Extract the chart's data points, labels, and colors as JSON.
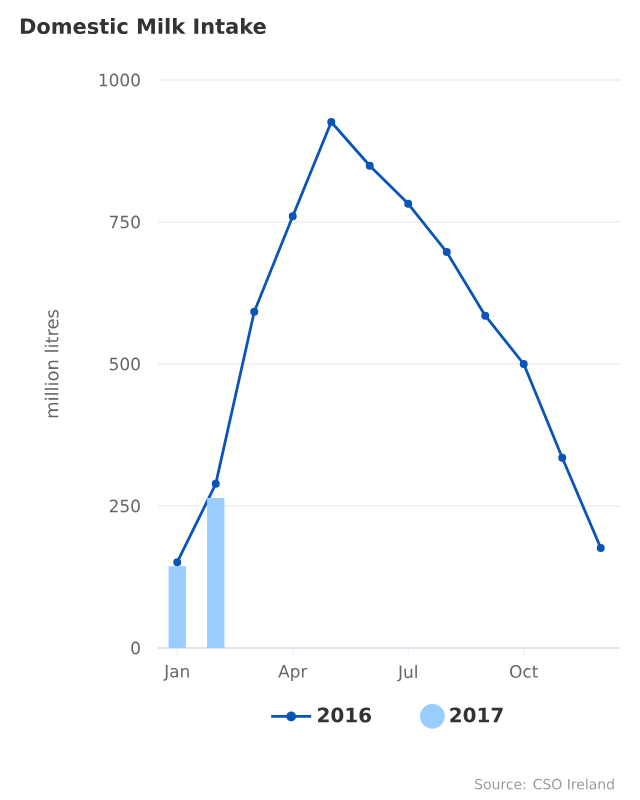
{
  "chart_data": {
    "type": "line",
    "title": "Domestic Milk Intake",
    "ylabel": "million litres",
    "categories": [
      "Jan",
      null,
      null,
      "Apr",
      null,
      null,
      "Jul",
      null,
      null,
      "Oct",
      null,
      null
    ],
    "series": [
      {
        "name": "2016",
        "color": "#0b55b8",
        "values": [
          151,
          289,
          592,
          760,
          926,
          849,
          782,
          697,
          585,
          500,
          335,
          176
        ]
      },
      {
        "name": "2017",
        "type": "bar",
        "color": "#99ccff",
        "values": [
          144,
          264,
          null,
          null,
          null,
          null,
          null,
          null,
          null,
          null,
          null,
          null
        ]
      }
    ],
    "ylim": [
      0,
      1000
    ],
    "yticks": [
      0,
      250,
      500,
      750,
      1000
    ],
    "grid": "y",
    "legend": "bottom",
    "marker": "circle",
    "line_style": "solid",
    "annotations": [
      "Source: CSO Ireland"
    ]
  }
}
